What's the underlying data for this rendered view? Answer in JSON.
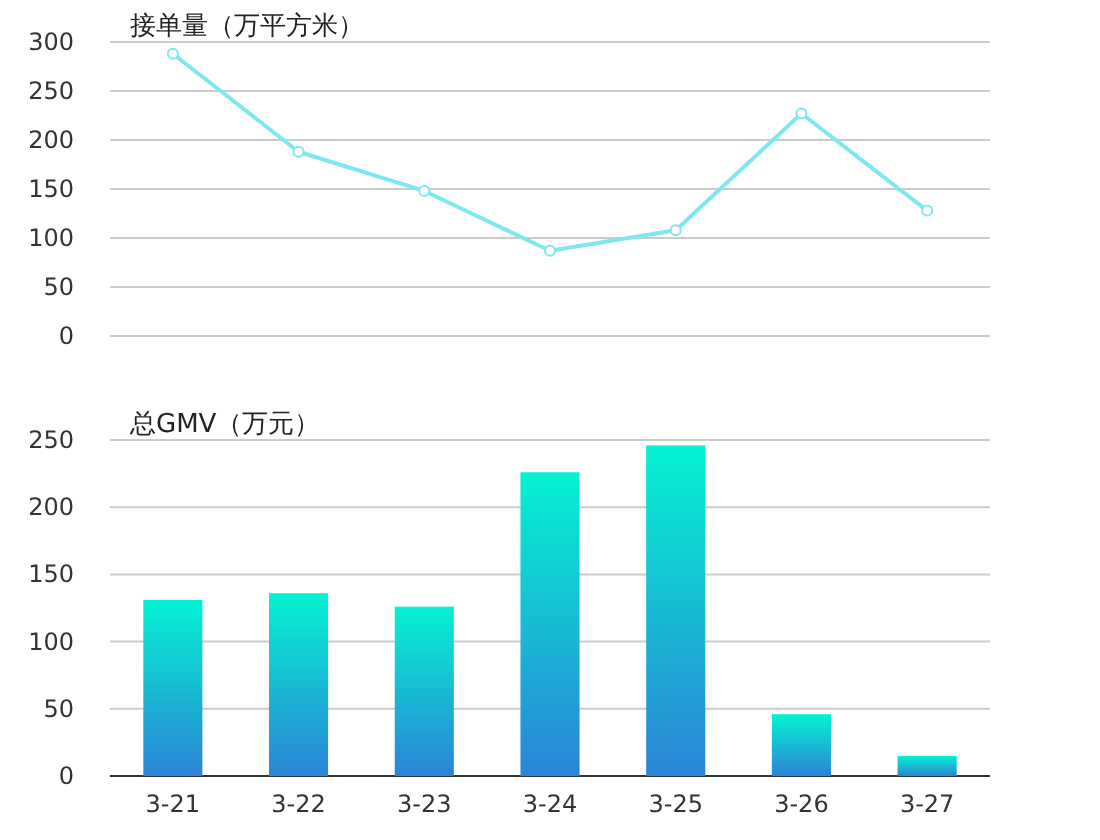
{
  "chart_data": [
    {
      "type": "line",
      "title": "接单量（万平方米）",
      "categories": [
        null,
        null,
        null,
        null,
        null,
        null,
        null
      ],
      "values": [
        288,
        188,
        148,
        87,
        108,
        227,
        128
      ],
      "color": "#7ee8ee",
      "marker": "circle",
      "line_style": "solid",
      "ylim": [
        0,
        300
      ],
      "yticks": [
        0,
        50,
        100,
        150,
        200,
        250,
        300
      ],
      "grid": "y",
      "tick_labels": "y"
    },
    {
      "type": "bar",
      "title": "总GMV（万元）",
      "categories": [
        "3-21",
        "3-22",
        "3-23",
        "3-24",
        "3-25",
        "3-26",
        "3-27"
      ],
      "values": [
        131,
        136,
        126,
        226,
        246,
        46,
        15
      ],
      "color": "#05f2d2",
      "ylim": [
        0,
        250
      ],
      "yticks": [
        0,
        50,
        100,
        150,
        200,
        250
      ],
      "grid": "y"
    }
  ]
}
